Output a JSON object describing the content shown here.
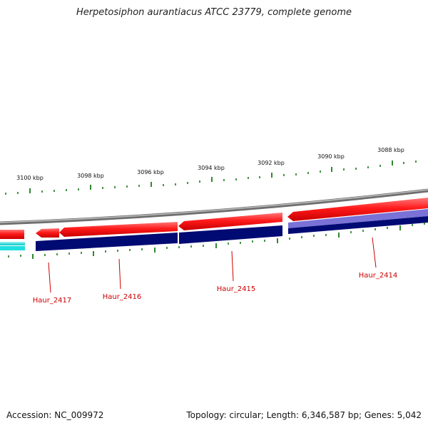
{
  "title": "Herpetosiphon aurantiacus ATCC 23779, complete genome",
  "accession": "Accession: NC_009972",
  "summary": "Topology: circular; Length: 6,346,587 bp; Genes: 5,042",
  "colors": {
    "backbone": "#8c8c8c",
    "forward_gene": "#e00000",
    "forward_gene_highlight": "#ff6a6a",
    "reverse_gene": "#000a73",
    "reverse_gene_light": "#7a72d6",
    "cyan_feature": "#20e0e0",
    "tick": "#1a7a1a",
    "label": "#cc0000"
  },
  "ticks": [
    {
      "label": "3100 kbp"
    },
    {
      "label": "3098 kbp"
    },
    {
      "label": "3096 kbp"
    },
    {
      "label": "3094 kbp"
    },
    {
      "label": "3092 kbp"
    },
    {
      "label": "3090 kbp"
    },
    {
      "label": "3088 kbp"
    }
  ],
  "genes": [
    {
      "name": "Haur_2417"
    },
    {
      "name": "Haur_2416"
    },
    {
      "name": "Haur_2415"
    },
    {
      "name": "Haur_2414"
    }
  ]
}
